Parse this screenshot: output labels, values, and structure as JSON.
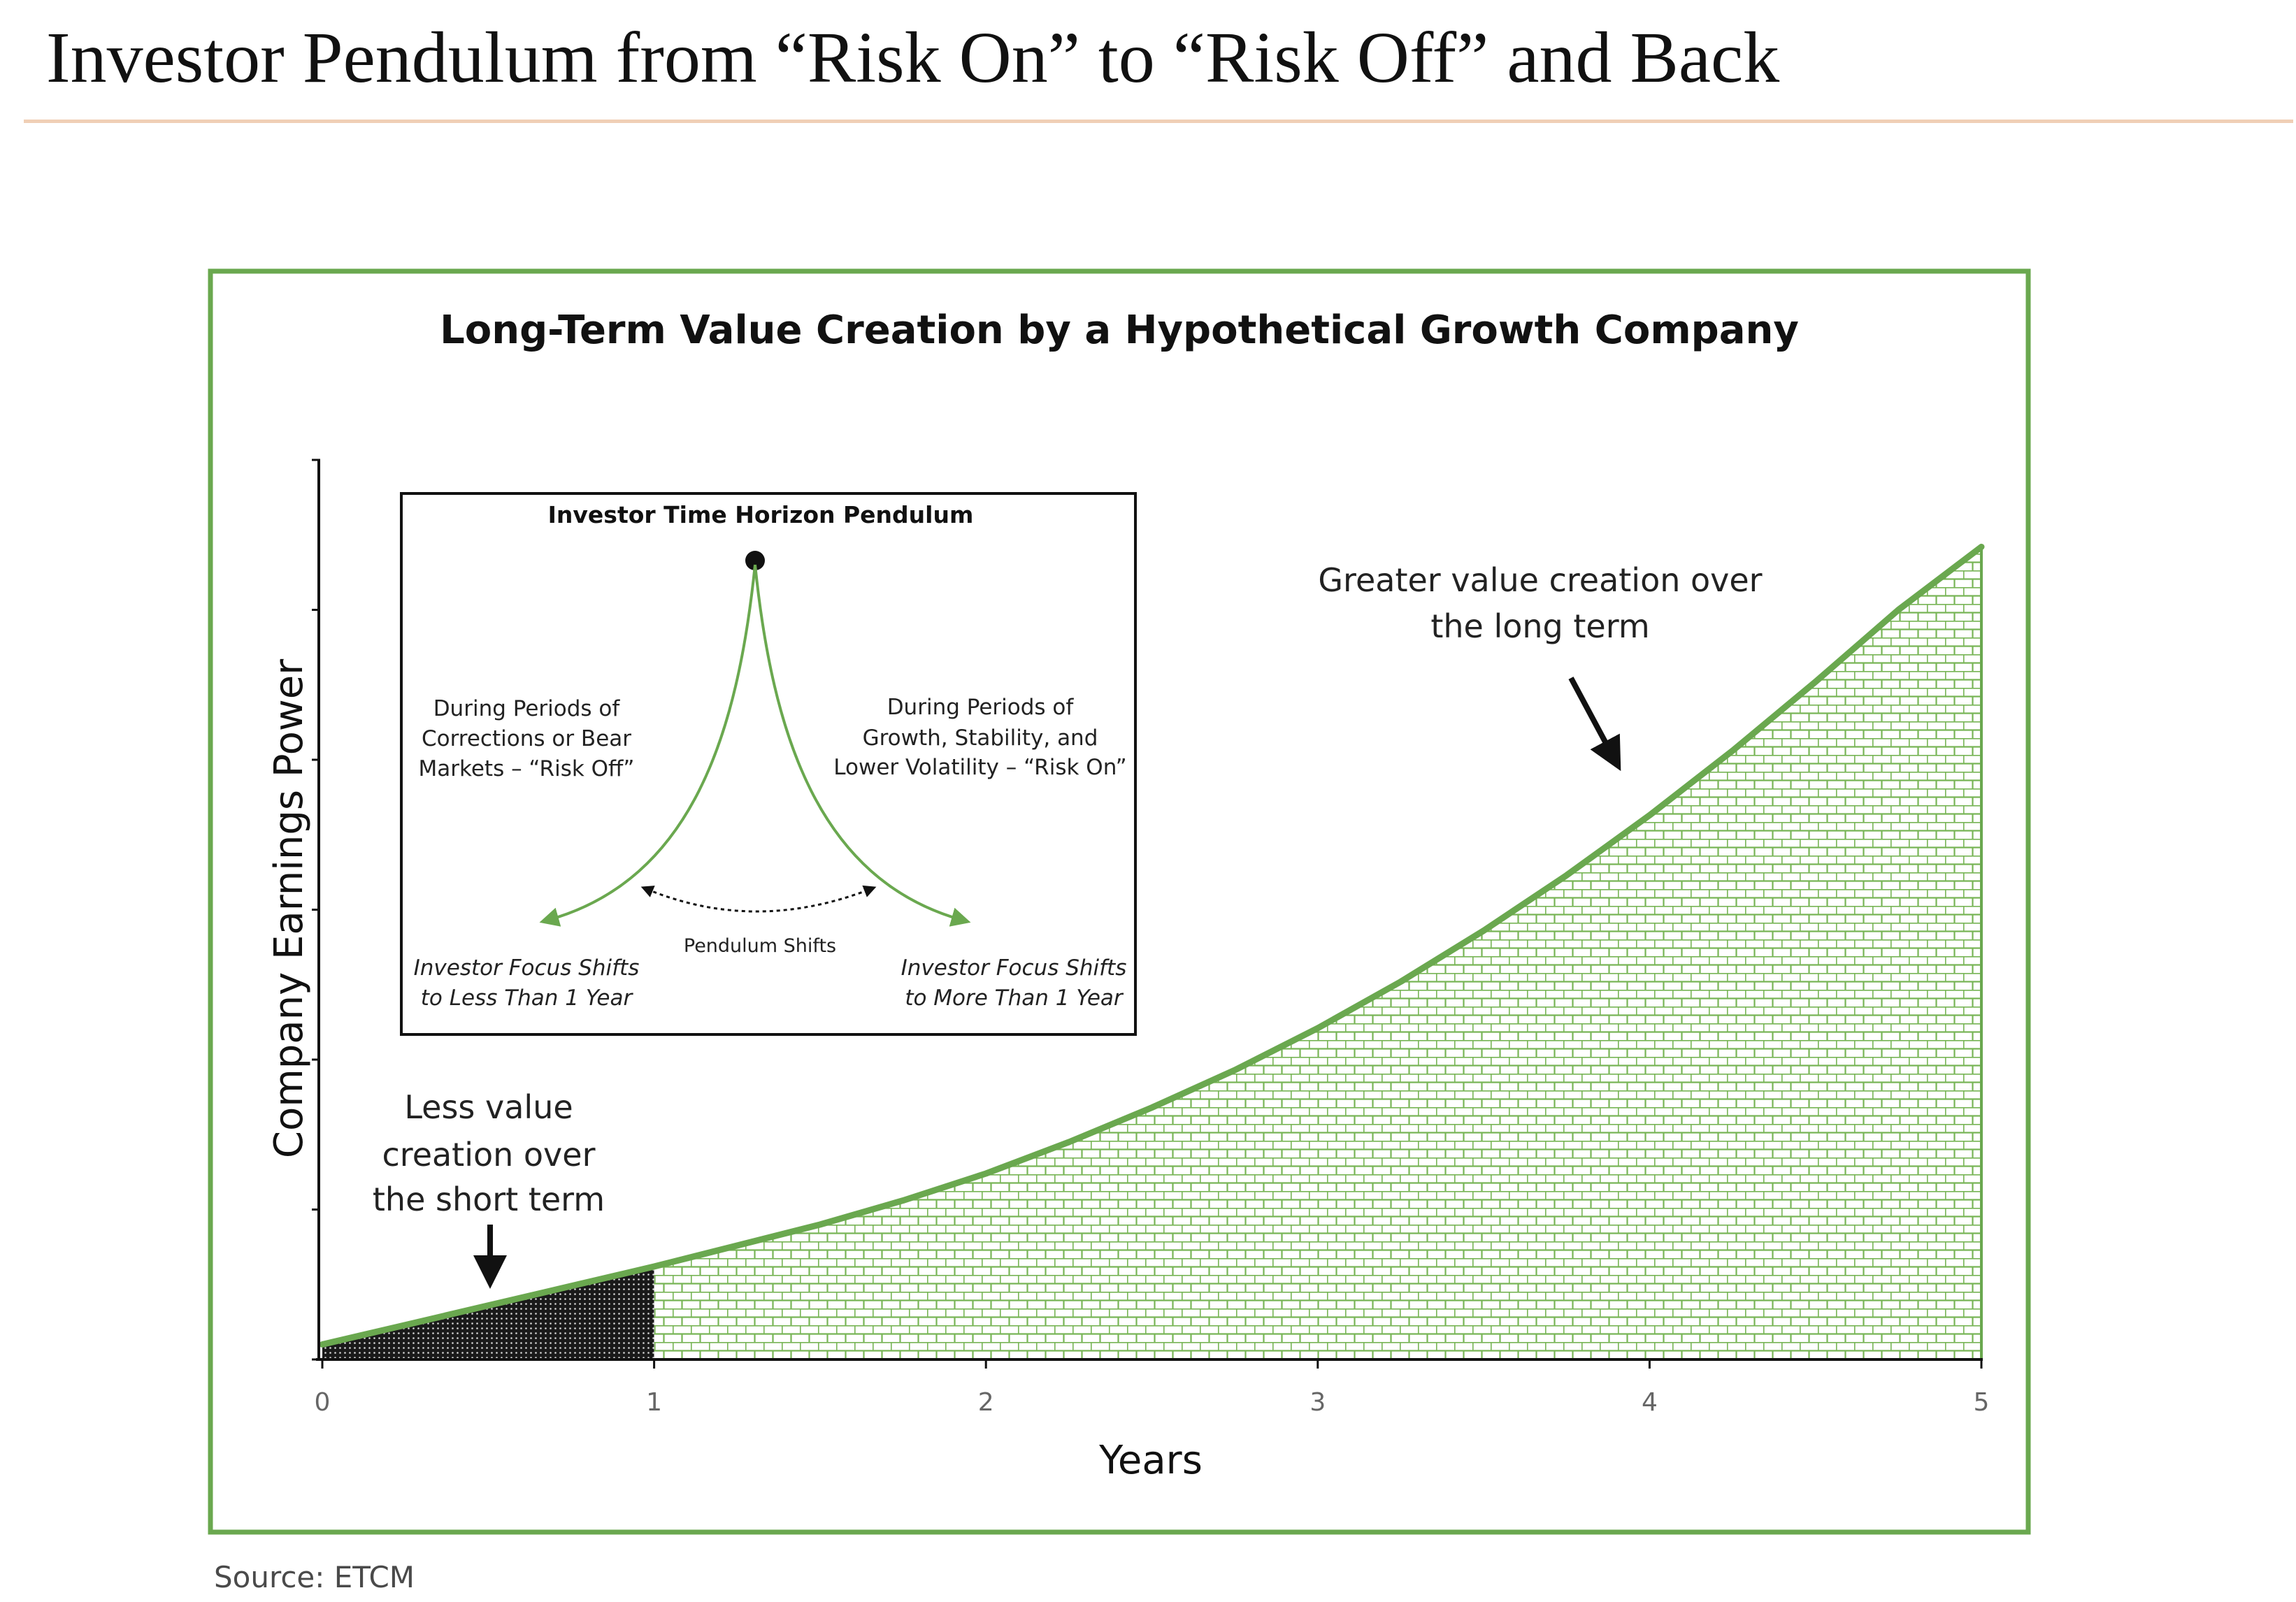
{
  "header": {
    "title": "Investor Pendulum from “Risk On” to “Risk Off” and Back"
  },
  "footer": {
    "source": "Source: ETCM"
  },
  "colors": {
    "frame": "#6aa84f",
    "curve": "#6aa84f",
    "fill_long_term": "#78b556",
    "fill_short_term": "#1a1a1a",
    "title_rule": "#f0cfb6"
  },
  "chart_data": {
    "type": "area",
    "title": "Long-Term Value Creation by a Hypothetical Growth Company",
    "xlabel": "Years",
    "ylabel": "Company Earnings Power",
    "xlim": [
      0,
      5
    ],
    "ylim": [
      0,
      6
    ],
    "x_ticks": [
      "0",
      "1",
      "2",
      "3",
      "4",
      "5"
    ],
    "y_tick_labels_shown": false,
    "grid": false,
    "x": [
      0,
      0.25,
      0.5,
      0.75,
      1,
      1.25,
      1.5,
      1.75,
      2,
      2.25,
      2.5,
      2.75,
      3,
      3.25,
      3.5,
      3.75,
      4,
      4.25,
      4.5,
      4.75,
      5
    ],
    "y": [
      0.1,
      0.23,
      0.36,
      0.49,
      0.62,
      0.76,
      0.9,
      1.06,
      1.24,
      1.45,
      1.68,
      1.93,
      2.21,
      2.52,
      2.86,
      3.23,
      3.63,
      4.06,
      4.52,
      5.0,
      5.42
    ],
    "regions": [
      {
        "from": 0,
        "to": 1,
        "pattern": "dark dotted"
      },
      {
        "from": 1,
        "to": 5,
        "pattern": "green brick"
      }
    ],
    "annotations": {
      "short_term": [
        "Less value",
        "creation over",
        "the short term"
      ],
      "long_term": [
        "Greater value creation over",
        "the long term"
      ]
    },
    "inset": {
      "title": "Investor Time Horizon Pendulum",
      "left_text": [
        "During Periods of",
        "Corrections or Bear",
        "Markets – “Risk Off”"
      ],
      "right_text": [
        "During Periods of",
        "Growth, Stability, and",
        "Lower Volatility – “Risk On”"
      ],
      "center_label": "Pendulum Shifts",
      "bottom_left": [
        "Investor Focus Shifts",
        "to Less Than 1 Year"
      ],
      "bottom_right": [
        "Investor Focus Shifts",
        "to More Than 1 Year"
      ]
    }
  }
}
